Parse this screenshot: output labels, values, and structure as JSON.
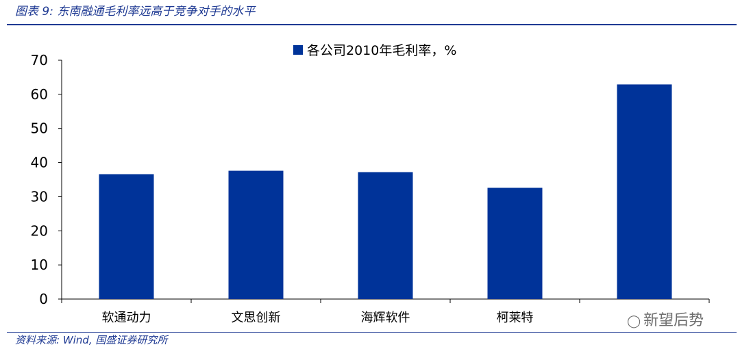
{
  "figure": {
    "title": "图表 9:  东南融通毛利率远高于竞争对手的水平",
    "source": "资料来源:  Wind,  国盛证券研究所",
    "watermark": "新望后势"
  },
  "colors": {
    "bar": "#003399",
    "accent": "#1f3a93",
    "axis": "#000000"
  },
  "chart_data": {
    "type": "bar",
    "categories": [
      "软通动力",
      "文思创新",
      "海辉软件",
      "柯莱特",
      ""
    ],
    "series": [
      {
        "name": "各公司2010年毛利率，%",
        "values": [
          36.6,
          37.6,
          37.2,
          32.6,
          62.9
        ]
      }
    ],
    "ylim": [
      0,
      70
    ],
    "yticks": [
      0,
      10,
      20,
      30,
      40,
      50,
      60,
      70
    ],
    "legend_position": "top-center",
    "grid": false
  }
}
